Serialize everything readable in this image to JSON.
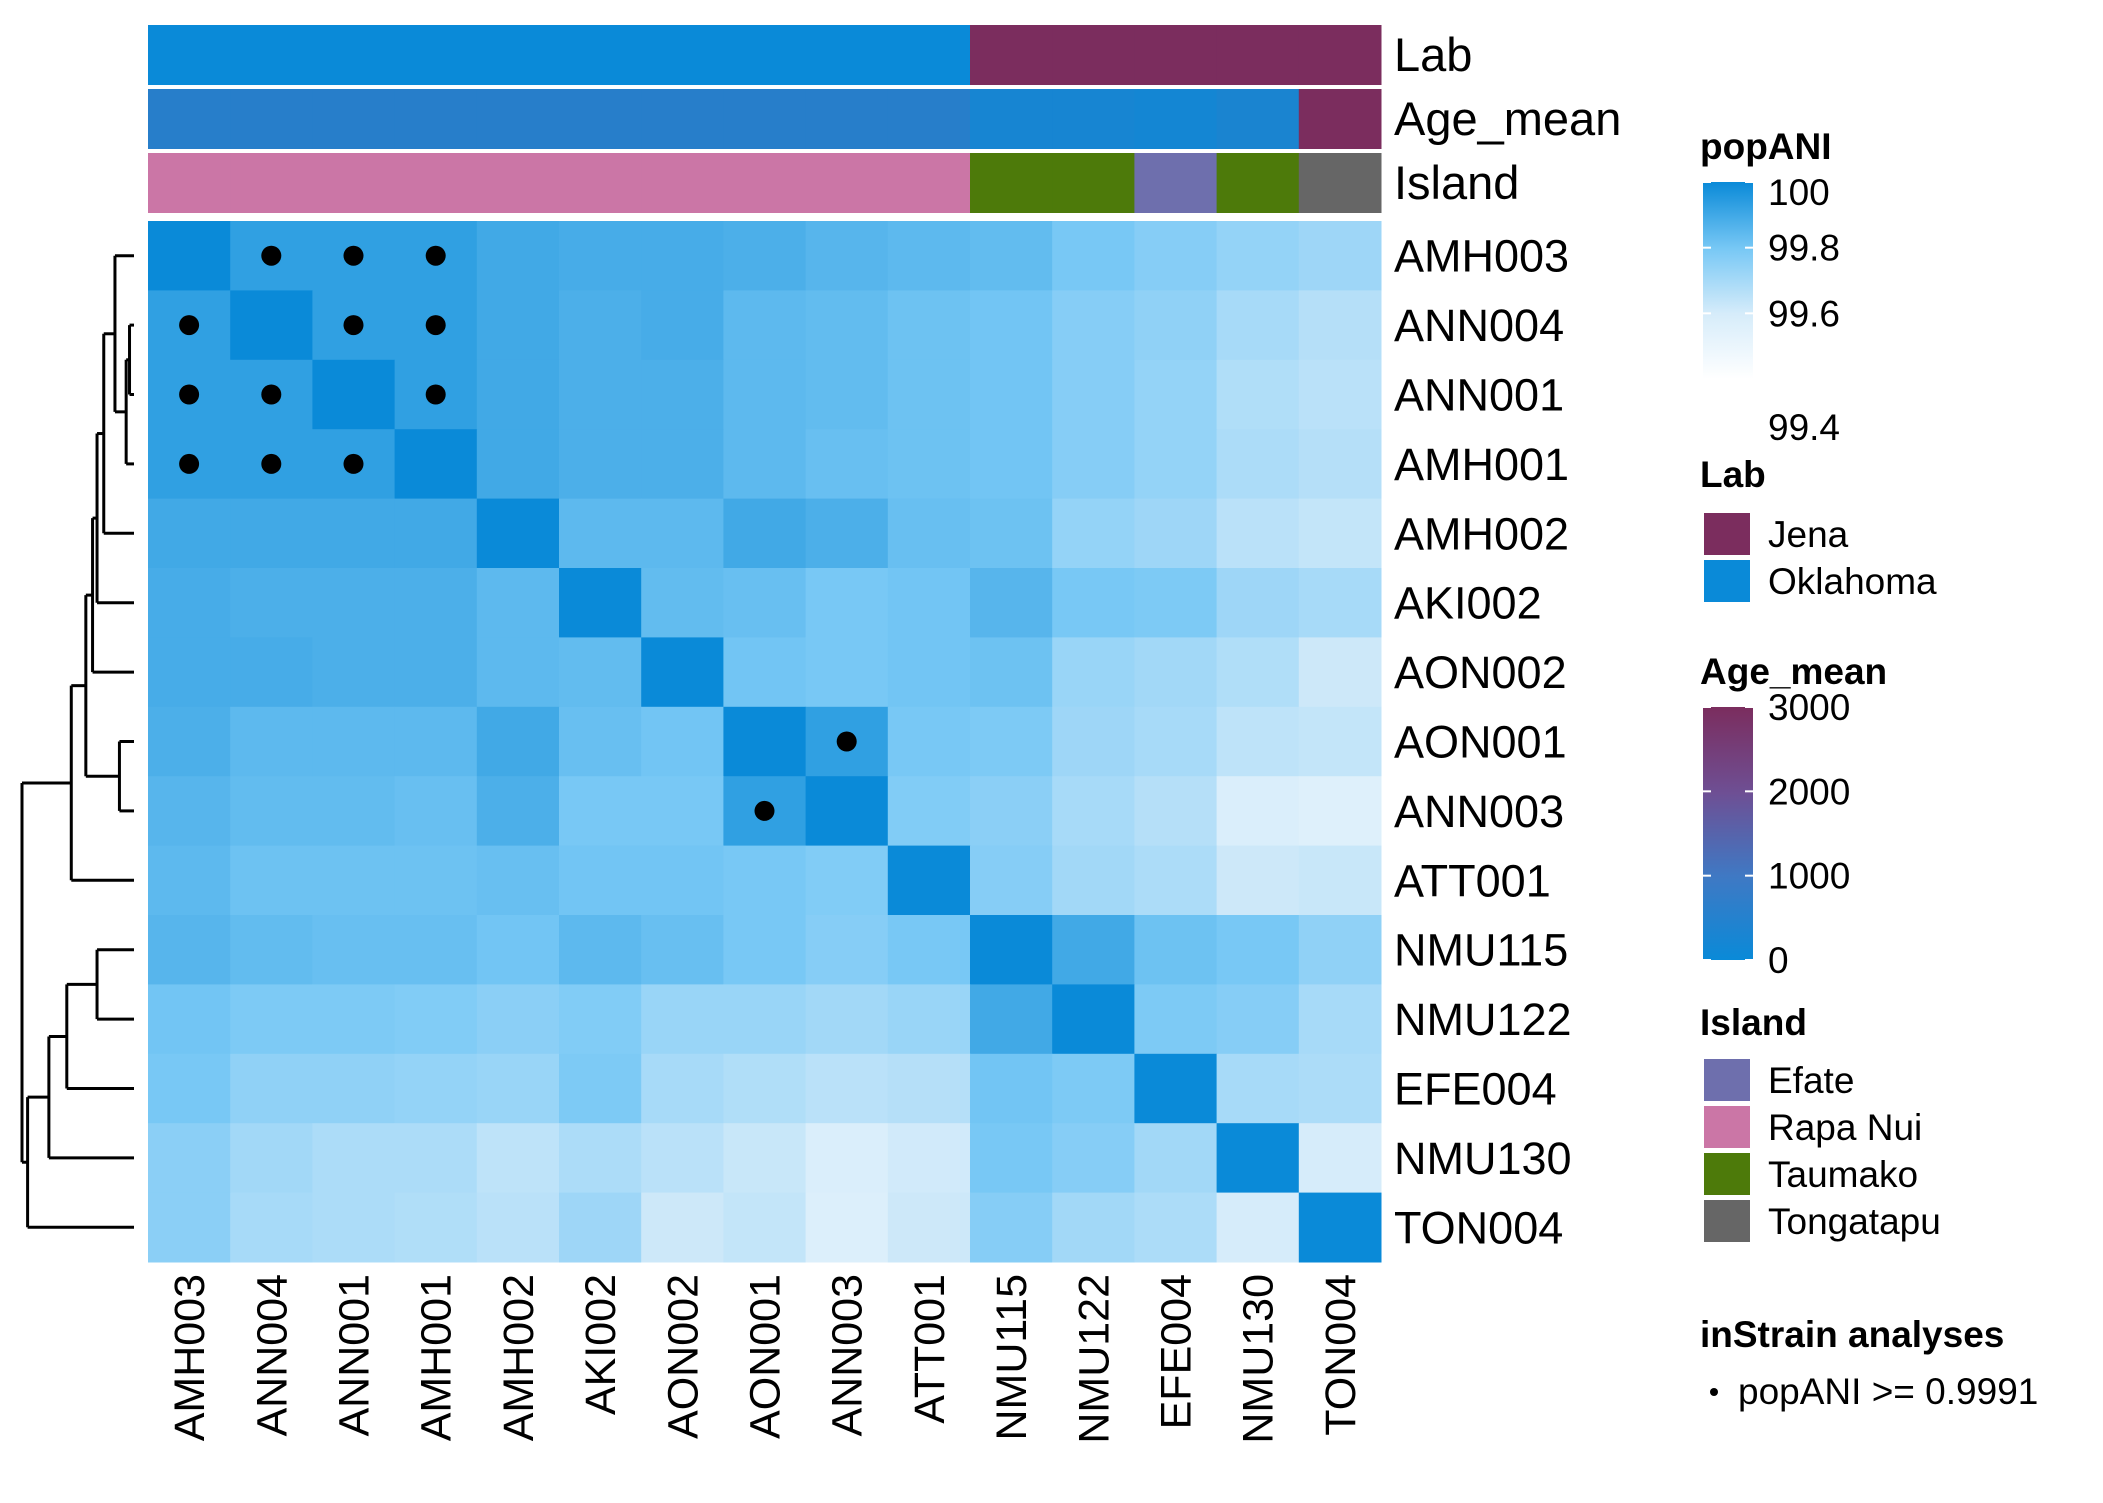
{
  "chart_data": {
    "type": "heatmap",
    "title": "",
    "samples": [
      "AMH003",
      "ANN004",
      "ANN001",
      "AMH001",
      "AMH002",
      "AKI002",
      "AON002",
      "AON001",
      "ANN003",
      "ATT001",
      "NMU115",
      "NMU122",
      "EFE004",
      "NMU130",
      "TON004"
    ],
    "values": [
      [
        100.0,
        99.93,
        99.93,
        99.93,
        99.9,
        99.89,
        99.89,
        99.88,
        99.86,
        99.85,
        99.84,
        99.8,
        99.77,
        99.74,
        99.72
      ],
      [
        99.93,
        100.0,
        99.93,
        99.93,
        99.9,
        99.88,
        99.89,
        99.85,
        99.84,
        99.82,
        99.81,
        99.77,
        99.75,
        99.7,
        99.67
      ],
      [
        99.93,
        99.93,
        100.0,
        99.93,
        99.9,
        99.88,
        99.88,
        99.85,
        99.84,
        99.82,
        99.81,
        99.77,
        99.74,
        99.68,
        99.66
      ],
      [
        99.93,
        99.93,
        99.93,
        100.0,
        99.9,
        99.88,
        99.88,
        99.85,
        99.83,
        99.82,
        99.81,
        99.77,
        99.74,
        99.69,
        99.67
      ],
      [
        99.9,
        99.9,
        99.9,
        99.9,
        100.0,
        99.85,
        99.85,
        99.9,
        99.88,
        99.83,
        99.82,
        99.74,
        99.72,
        99.66,
        99.64
      ],
      [
        99.89,
        99.88,
        99.88,
        99.88,
        99.85,
        100.0,
        99.84,
        99.83,
        99.8,
        99.81,
        99.86,
        99.8,
        99.79,
        99.72,
        99.7
      ],
      [
        99.89,
        99.89,
        99.88,
        99.88,
        99.85,
        99.84,
        100.0,
        99.81,
        99.8,
        99.81,
        99.82,
        99.73,
        99.71,
        99.68,
        99.62
      ],
      [
        99.88,
        99.85,
        99.85,
        99.85,
        99.9,
        99.83,
        99.81,
        100.0,
        99.93,
        99.8,
        99.79,
        99.72,
        99.7,
        99.65,
        99.64
      ],
      [
        99.86,
        99.84,
        99.84,
        99.83,
        99.88,
        99.8,
        99.8,
        99.93,
        100.0,
        99.78,
        99.76,
        99.7,
        99.67,
        99.58,
        99.56
      ],
      [
        99.85,
        99.82,
        99.82,
        99.82,
        99.83,
        99.81,
        99.81,
        99.8,
        99.78,
        100.0,
        99.77,
        99.71,
        99.69,
        99.62,
        99.63
      ],
      [
        99.86,
        99.84,
        99.83,
        99.83,
        99.81,
        99.85,
        99.83,
        99.8,
        99.77,
        99.8,
        100.0,
        99.9,
        99.82,
        99.8,
        99.75
      ],
      [
        99.81,
        99.79,
        99.79,
        99.78,
        99.76,
        99.78,
        99.73,
        99.73,
        99.71,
        99.73,
        99.9,
        100.0,
        99.79,
        99.77,
        99.7
      ],
      [
        99.8,
        99.75,
        99.75,
        99.74,
        99.73,
        99.79,
        99.7,
        99.68,
        99.66,
        99.67,
        99.81,
        99.79,
        100.0,
        99.7,
        99.69
      ],
      [
        99.76,
        99.71,
        99.69,
        99.69,
        99.65,
        99.69,
        99.66,
        99.63,
        99.58,
        99.61,
        99.8,
        99.77,
        99.71,
        100.0,
        99.6
      ],
      [
        99.76,
        99.7,
        99.69,
        99.68,
        99.66,
        99.72,
        99.62,
        99.64,
        99.57,
        99.62,
        99.77,
        99.71,
        99.69,
        99.6,
        100.0
      ]
    ],
    "row_labels": [
      "AMH003",
      "ANN004",
      "ANN001",
      "AMH001",
      "AMH002",
      "AKI002",
      "AON002",
      "AON001",
      "ANN003",
      "ATT001",
      "NMU115",
      "NMU122",
      "EFE004",
      "NMU130",
      "TON004"
    ],
    "col_labels": [
      "AMH003",
      "ANN004",
      "ANN001",
      "AMH001",
      "AMH002",
      "AKI002",
      "AON002",
      "AON001",
      "ANN003",
      "ATT001",
      "NMU115",
      "NMU122",
      "EFE004",
      "NMU130",
      "TON004"
    ],
    "significant_pairs": [
      [
        0,
        1
      ],
      [
        0,
        2
      ],
      [
        0,
        3
      ],
      [
        1,
        0
      ],
      [
        1,
        2
      ],
      [
        1,
        3
      ],
      [
        2,
        0
      ],
      [
        2,
        1
      ],
      [
        2,
        3
      ],
      [
        3,
        0
      ],
      [
        3,
        1
      ],
      [
        3,
        2
      ],
      [
        7,
        8
      ],
      [
        8,
        7
      ]
    ],
    "annotations": {
      "labels": [
        "Lab",
        "Age_mean",
        "Island"
      ],
      "lab": [
        "Oklahoma",
        "Oklahoma",
        "Oklahoma",
        "Oklahoma",
        "Oklahoma",
        "Oklahoma",
        "Oklahoma",
        "Oklahoma",
        "Oklahoma",
        "Oklahoma",
        "Jena",
        "Jena",
        "Jena",
        "Jena",
        "Jena"
      ],
      "age_mean": [
        450,
        450,
        450,
        450,
        450,
        450,
        450,
        450,
        450,
        450,
        200,
        200,
        150,
        250,
        3000
      ],
      "island": [
        "Rapa Nui",
        "Rapa Nui",
        "Rapa Nui",
        "Rapa Nui",
        "Rapa Nui",
        "Rapa Nui",
        "Rapa Nui",
        "Rapa Nui",
        "Rapa Nui",
        "Rapa Nui",
        "Taumako",
        "Taumako",
        "Efate",
        "Taumako",
        "Tongatapu"
      ]
    },
    "dendrogram": {
      "leaf_order": [
        "AMH003",
        "ANN004",
        "ANN001",
        "AMH001",
        "AMH002",
        "AKI002",
        "AON002",
        "AON001",
        "ANN003",
        "ATT001",
        "NMU115",
        "NMU122",
        "EFE004",
        "NMU130",
        "TON004"
      ],
      "merges": [
        {
          "a": "L1",
          "b": "L2",
          "height": 0.04
        },
        {
          "a": "N0",
          "b": "L3",
          "height": 0.07
        },
        {
          "a": "L0",
          "b": "N1",
          "height": 0.17
        },
        {
          "a": "N2",
          "b": "L4",
          "height": 0.27
        },
        {
          "a": "N3",
          "b": "L5",
          "height": 0.33
        },
        {
          "a": "N4",
          "b": "L6",
          "height": 0.37
        },
        {
          "a": "L7",
          "b": "L8",
          "height": 0.13
        },
        {
          "a": "N5",
          "b": "N6",
          "height": 0.43
        },
        {
          "a": "N7",
          "b": "L9",
          "height": 0.56
        },
        {
          "a": "L10",
          "b": "L11",
          "height": 0.33
        },
        {
          "a": "N9",
          "b": "L12",
          "height": 0.6
        },
        {
          "a": "N10",
          "b": "L13",
          "height": 0.76
        },
        {
          "a": "N11",
          "b": "L14",
          "height": 0.95
        },
        {
          "a": "N8",
          "b": "N12",
          "height": 1.0
        }
      ]
    },
    "legends": {
      "popani": {
        "title": "popANI",
        "ticks": [
          100,
          99.8,
          99.6,
          99.4
        ],
        "tick_labels": [
          "100",
          "99.8",
          "99.6",
          "99.4"
        ],
        "range": [
          99.4,
          100
        ],
        "colors": [
          "#ffffff",
          "#d6ecfa",
          "#78c8f5",
          "#0a8ad8"
        ]
      },
      "lab": {
        "title": "Lab",
        "items": [
          "Jena",
          "Oklahoma"
        ],
        "colors": [
          "#7b2d5e",
          "#0a8ad8"
        ]
      },
      "age_mean": {
        "title": "Age_mean",
        "ticks": [
          3000,
          2000,
          1000,
          0
        ],
        "tick_labels": [
          "3000",
          "2000",
          "1000",
          "0"
        ],
        "range": [
          0,
          3000
        ],
        "colors": [
          "#0a8ad8",
          "#4a70b8",
          "#7a3a6e",
          "#7b2d5e"
        ]
      },
      "island": {
        "title": "Island",
        "items": [
          "Efate",
          "Rapa Nui",
          "Taumako",
          "Tongatapu"
        ],
        "colors": [
          "#6e6fad",
          "#cb76a6",
          "#4d7a0a",
          "#666666"
        ]
      },
      "instrain": {
        "title": "inStrain analyses",
        "item": "popANI  >= 0.9991"
      }
    }
  }
}
